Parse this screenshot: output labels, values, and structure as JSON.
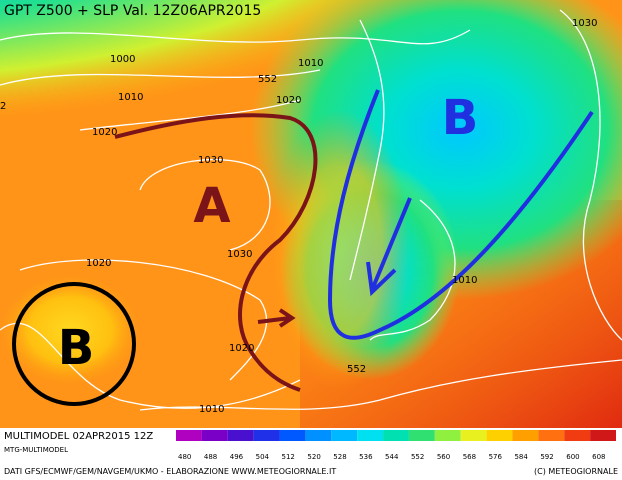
{
  "header": {
    "title": "GPT Z500 + SLP Val. 12Z06APR2015"
  },
  "isobar_labels": [
    "1000",
    "1010",
    "1020",
    "1030",
    "1030",
    "1020",
    "1020",
    "1010",
    "552",
    "1010",
    "1020",
    "1030",
    "1010",
    "552",
    "2"
  ],
  "pressure_centers": [
    "A",
    "B",
    "B"
  ],
  "footer": {
    "run": "MULTIMODEL 02APR2015 12Z",
    "model": "MTG-MULTIMODEL",
    "scale": {
      "values": [
        480,
        488,
        496,
        504,
        512,
        520,
        528,
        536,
        544,
        552,
        560,
        568,
        576,
        584,
        592,
        600,
        608
      ],
      "colors": [
        "#b000c0",
        "#7a00c8",
        "#4a10d0",
        "#2030e8",
        "#0058ff",
        "#0090ff",
        "#00b8ff",
        "#00e0f0",
        "#00e0b0",
        "#30e070",
        "#90f040",
        "#e8f020",
        "#ffd000",
        "#ffa000",
        "#ff7010",
        "#f03c10",
        "#d01818"
      ]
    },
    "source": "DATI GFS/ECMWF/GEM/NAVGEM/UKMO - ELABORAZIONE WWW.METEOGIORNALE.IT",
    "credit": "(C) METEOGIORNALE"
  }
}
